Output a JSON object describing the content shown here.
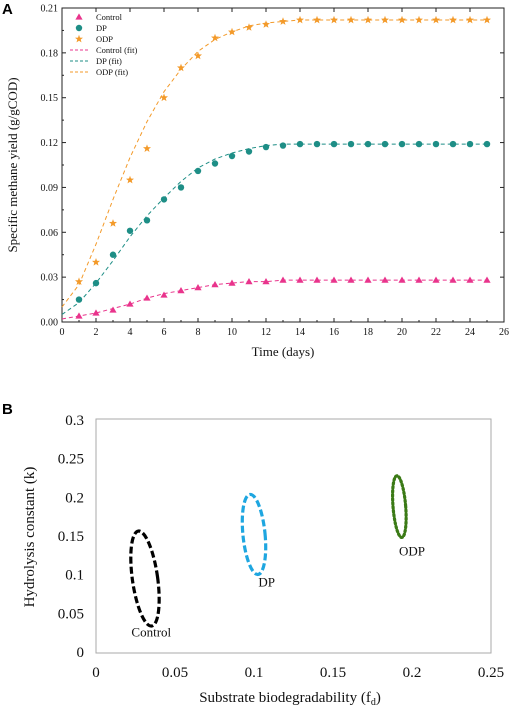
{
  "colors": {
    "control": "#e9348c",
    "dp": "#1e8e86",
    "odp": "#f39a2a",
    "b_control": "#000000",
    "b_dp": "#1ea6e0",
    "b_odp": "#3b7a16"
  },
  "chart_data": [
    {
      "panel": "A",
      "type": "scatter",
      "xlabel": "Time (days)",
      "ylabel": "Specific methane yield (g/gCOD)",
      "xlim": [
        0,
        26
      ],
      "ylim": [
        0,
        0.21
      ],
      "xticks": [
        "0",
        "2",
        "4",
        "6",
        "8",
        "10",
        "12",
        "14",
        "16",
        "18",
        "20",
        "22",
        "24",
        "26"
      ],
      "yticks": [
        "0.00",
        "0.03",
        "0.06",
        "0.09",
        "0.12",
        "0.15",
        "0.18",
        "0.21"
      ],
      "legend_position": "top-left",
      "legend": [
        "Control",
        "DP",
        "ODP",
        "Control (fit)",
        "DP (fit)",
        "ODP (fit)"
      ],
      "series": [
        {
          "name": "Control",
          "marker": "triangle",
          "x": [
            1,
            2,
            3,
            4,
            5,
            6,
            7,
            8,
            9,
            10,
            11,
            12,
            13,
            14,
            15,
            16,
            17,
            18,
            19,
            20,
            21,
            22,
            23,
            24,
            25
          ],
          "y": [
            0.004,
            0.006,
            0.008,
            0.012,
            0.016,
            0.018,
            0.021,
            0.023,
            0.025,
            0.026,
            0.027,
            0.027,
            0.028,
            0.028,
            0.028,
            0.028,
            0.028,
            0.028,
            0.028,
            0.028,
            0.028,
            0.028,
            0.028,
            0.028,
            0.028
          ]
        },
        {
          "name": "DP",
          "marker": "circle",
          "x": [
            1,
            2,
            3,
            4,
            5,
            6,
            7,
            8,
            9,
            10,
            11,
            12,
            13,
            14,
            15,
            16,
            17,
            18,
            19,
            20,
            21,
            22,
            23,
            24,
            25
          ],
          "y": [
            0.015,
            0.026,
            0.045,
            0.061,
            0.068,
            0.082,
            0.09,
            0.101,
            0.106,
            0.111,
            0.114,
            0.117,
            0.118,
            0.119,
            0.119,
            0.119,
            0.119,
            0.119,
            0.119,
            0.119,
            0.119,
            0.119,
            0.119,
            0.119,
            0.119
          ]
        },
        {
          "name": "ODP",
          "marker": "star",
          "x": [
            1,
            2,
            3,
            4,
            5,
            6,
            7,
            8,
            9,
            10,
            11,
            12,
            13,
            14,
            15,
            16,
            17,
            18,
            19,
            20,
            21,
            22,
            23,
            24,
            25
          ],
          "y": [
            0.027,
            0.04,
            0.066,
            0.095,
            0.116,
            0.15,
            0.17,
            0.178,
            0.19,
            0.194,
            0.197,
            0.199,
            0.201,
            0.202,
            0.202,
            0.202,
            0.202,
            0.202,
            0.202,
            0.202,
            0.202,
            0.202,
            0.202,
            0.202,
            0.202
          ]
        }
      ],
      "fits": [
        {
          "name": "Control (fit)",
          "x": [
            0,
            1,
            2,
            3,
            4,
            5,
            6,
            7,
            8,
            9,
            10,
            11,
            12,
            13,
            14,
            16,
            18,
            20,
            22,
            25
          ],
          "y": [
            0.002,
            0.004,
            0.006,
            0.009,
            0.012,
            0.016,
            0.019,
            0.021,
            0.023,
            0.025,
            0.026,
            0.027,
            0.027,
            0.028,
            0.028,
            0.028,
            0.028,
            0.028,
            0.028,
            0.028
          ]
        },
        {
          "name": "DP (fit)",
          "x": [
            0,
            1,
            2,
            3,
            4,
            5,
            6,
            7,
            8,
            9,
            10,
            11,
            12,
            13,
            14,
            16,
            18,
            20,
            22,
            25
          ],
          "y": [
            0.005,
            0.013,
            0.026,
            0.041,
            0.057,
            0.071,
            0.083,
            0.094,
            0.103,
            0.109,
            0.113,
            0.116,
            0.118,
            0.119,
            0.119,
            0.119,
            0.119,
            0.119,
            0.119,
            0.119
          ]
        },
        {
          "name": "ODP (fit)",
          "x": [
            0,
            1,
            2,
            3,
            4,
            5,
            6,
            7,
            8,
            9,
            10,
            11,
            12,
            13,
            14,
            16,
            18,
            20,
            22,
            25
          ],
          "y": [
            0.01,
            0.025,
            0.052,
            0.082,
            0.11,
            0.134,
            0.154,
            0.169,
            0.181,
            0.189,
            0.194,
            0.198,
            0.2,
            0.201,
            0.202,
            0.202,
            0.202,
            0.202,
            0.202,
            0.202
          ]
        }
      ]
    },
    {
      "panel": "B",
      "type": "scatter",
      "xlabel": "Substrate biodegradability (f",
      "xlabel_sub": "d",
      "xlabel_end": ")",
      "ylabel": "Hydrolysis constant (k)",
      "xlim": [
        0,
        0.25
      ],
      "ylim": [
        0,
        0.3
      ],
      "xticks": [
        "0",
        "0.05",
        "0.1",
        "0.15",
        "0.2",
        "0.25"
      ],
      "yticks": [
        "0",
        "0.05",
        "0.1",
        "0.15",
        "0.2",
        "0.25",
        "0.3"
      ],
      "regions": [
        {
          "name": "Control",
          "cx": 0.031,
          "cy": 0.095,
          "x_half": 0.008,
          "y_half": 0.062,
          "tilt": -0.14,
          "dash": "dashed",
          "label_x": 0.035,
          "label_y": 0.02
        },
        {
          "name": "DP",
          "cx": 0.1,
          "cy": 0.152,
          "x_half": 0.007,
          "y_half": 0.052,
          "tilt": -0.1,
          "dash": "dashed",
          "label_x": 0.108,
          "label_y": 0.085
        },
        {
          "name": "ODP",
          "cx": 0.192,
          "cy": 0.188,
          "x_half": 0.004,
          "y_half": 0.04,
          "tilt": -0.08,
          "dash": "dotted",
          "label_x": 0.2,
          "label_y": 0.125
        }
      ]
    }
  ],
  "panels": {
    "a_letter": "A",
    "b_letter": "B"
  }
}
